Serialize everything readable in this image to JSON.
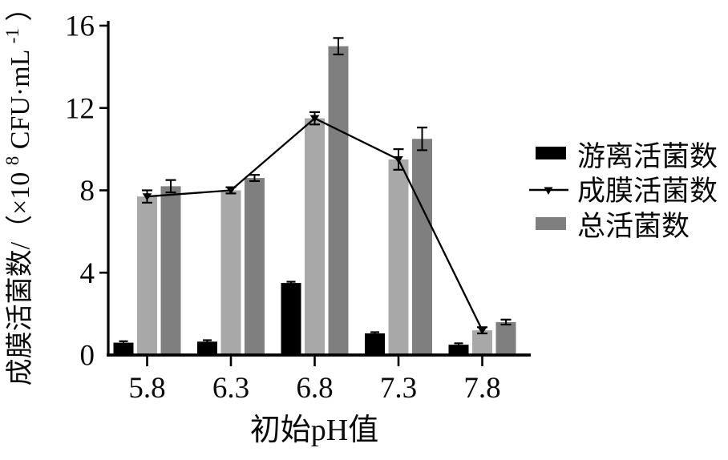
{
  "figure": {
    "background": "#ffffff",
    "text_color": "#0a0a0a"
  },
  "chart_data": {
    "type": "bar",
    "subtype": "grouped-bars-with-line-overlay",
    "title": "",
    "xlabel": "初始pH值",
    "ylabel": "成膜活菌数/（×10⁸ CFU·mL⁻¹）",
    "ylabel_parts": {
      "pre": "成膜活菌数/（×10",
      "sup1": "8",
      "mid": " CFU·mL",
      "sup2": "-1",
      "post": "）"
    },
    "categories": [
      "5.8",
      "6.3",
      "6.8",
      "7.3",
      "7.8"
    ],
    "series": [
      {
        "key": "free",
        "name": "游离活菌数",
        "render": "bar",
        "color": "#000000",
        "values": [
          0.6,
          0.65,
          3.5,
          1.05,
          0.5
        ],
        "errors": [
          0.07,
          0.07,
          0.06,
          0.06,
          0.07
        ]
      },
      {
        "key": "biofilm",
        "name": "成膜活菌数",
        "render": "bar+line",
        "color": "#a8a8a8",
        "line_color": "#000000",
        "marker": "triangle-down",
        "values": [
          7.7,
          8.0,
          11.5,
          9.5,
          1.2
        ],
        "errors": [
          0.3,
          0.15,
          0.3,
          0.5,
          0.15
        ]
      },
      {
        "key": "total",
        "name": "总活菌数",
        "render": "bar",
        "color": "#7f7f7f",
        "values": [
          8.2,
          8.6,
          15.0,
          10.5,
          1.6
        ],
        "errors": [
          0.3,
          0.15,
          0.4,
          0.55,
          0.12
        ]
      }
    ],
    "ylim": [
      0,
      16
    ],
    "yticks": [
      0,
      4,
      8,
      12,
      16
    ],
    "grid": false,
    "error_bars": true,
    "legend_position": "right"
  }
}
